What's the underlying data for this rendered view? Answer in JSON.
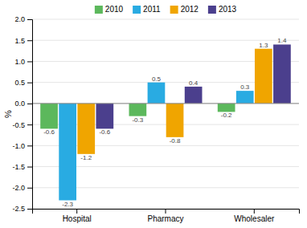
{
  "chart_data": {
    "type": "bar",
    "categories": [
      "Hospital",
      "Pharmacy",
      "Wholesaler"
    ],
    "series": [
      {
        "name": "2010",
        "color": "#5cb85c",
        "values": [
          -0.6,
          -0.3,
          -0.2
        ]
      },
      {
        "name": "2011",
        "color": "#29abe2",
        "values": [
          -2.3,
          0.5,
          0.3
        ]
      },
      {
        "name": "2012",
        "color": "#f0a500",
        "values": [
          -1.2,
          -0.8,
          1.3
        ]
      },
      {
        "name": "2013",
        "color": "#4b3f8d",
        "values": [
          -0.6,
          0.4,
          1.4
        ]
      }
    ],
    "ylabel": "%",
    "ylim": [
      -2.5,
      2.0
    ],
    "yticks": [
      -2.5,
      {
        "value": -2,
        "label": "-2.0"
      },
      -1.5,
      {
        "value": -1,
        "label": "-1.0"
      },
      -0.5,
      {
        "value": 0,
        "label": "0.0"
      },
      0.5,
      {
        "value": 1,
        "label": "1.0"
      },
      1.5,
      {
        "value": 2,
        "label": "2.0"
      }
    ],
    "grid": true,
    "legend": "top",
    "data_labels": true
  }
}
